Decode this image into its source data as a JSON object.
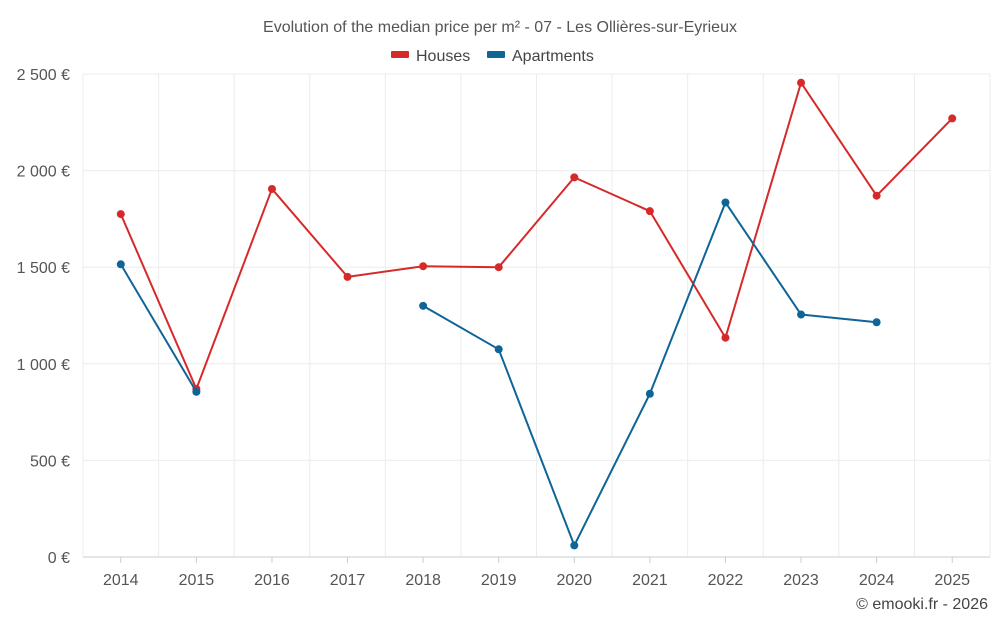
{
  "chart_data": {
    "type": "line",
    "title": "Evolution of the median price per m² - 07 - Les Ollières-sur-Eyrieux",
    "xlabel": "",
    "ylabel": "",
    "categories": [
      "2014",
      "2015",
      "2016",
      "2017",
      "2018",
      "2019",
      "2020",
      "2021",
      "2022",
      "2023",
      "2024",
      "2025"
    ],
    "ylim": [
      0,
      2500
    ],
    "yticks": [
      0,
      500,
      1000,
      1500,
      2000,
      2500
    ],
    "ytick_labels": [
      "0 €",
      "500 €",
      "1 000 €",
      "1 500 €",
      "2 000 €",
      "2 500 €"
    ],
    "legend_position": "top-center",
    "grid": true,
    "series": [
      {
        "name": "Houses",
        "color": "#d62a2a",
        "values": [
          1775,
          870,
          1905,
          1450,
          1505,
          1500,
          1965,
          1790,
          1135,
          2455,
          1870,
          2270
        ]
      },
      {
        "name": "Apartments",
        "color": "#0e6596",
        "values": [
          1515,
          855,
          null,
          null,
          1300,
          1075,
          60,
          845,
          1835,
          1255,
          1215,
          null
        ]
      }
    ]
  },
  "credit": "© emooki.fr - 2026"
}
